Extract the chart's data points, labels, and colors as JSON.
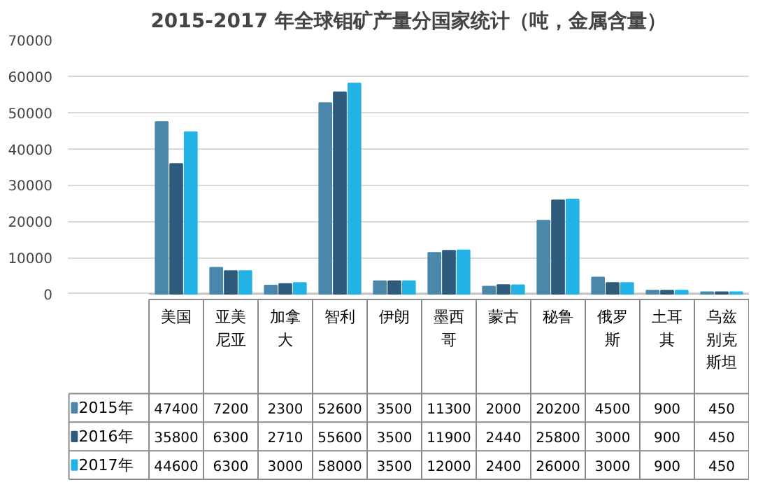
{
  "chart_data": {
    "type": "bar",
    "title": "2015-2017 年全球钼矿产量分国家统计（吨，金属含量）",
    "categories": [
      "美国",
      "亚美尼亚",
      "加拿大",
      "智利",
      "伊朗",
      "墨西哥",
      "蒙古",
      "秘鲁",
      "俄罗斯",
      "土耳其",
      "乌兹别克斯坦"
    ],
    "series": [
      {
        "name": "2015年",
        "color": "#4a87ab",
        "values": [
          47400,
          7200,
          2300,
          52600,
          3500,
          11300,
          2000,
          20200,
          4500,
          900,
          450
        ]
      },
      {
        "name": "2016年",
        "color": "#2e5b7c",
        "values": [
          35800,
          6300,
          2710,
          55600,
          3500,
          11900,
          2440,
          25800,
          3000,
          900,
          450
        ]
      },
      {
        "name": "2017年",
        "color": "#22b2e6",
        "values": [
          44600,
          6300,
          3000,
          58000,
          3500,
          12000,
          2400,
          26000,
          3000,
          900,
          450
        ]
      }
    ],
    "ylim": [
      0,
      70000
    ],
    "yticks": [
      0,
      10000,
      20000,
      30000,
      40000,
      50000,
      60000,
      70000
    ],
    "grid": "y",
    "legend": "bottom",
    "data_labels": true
  }
}
